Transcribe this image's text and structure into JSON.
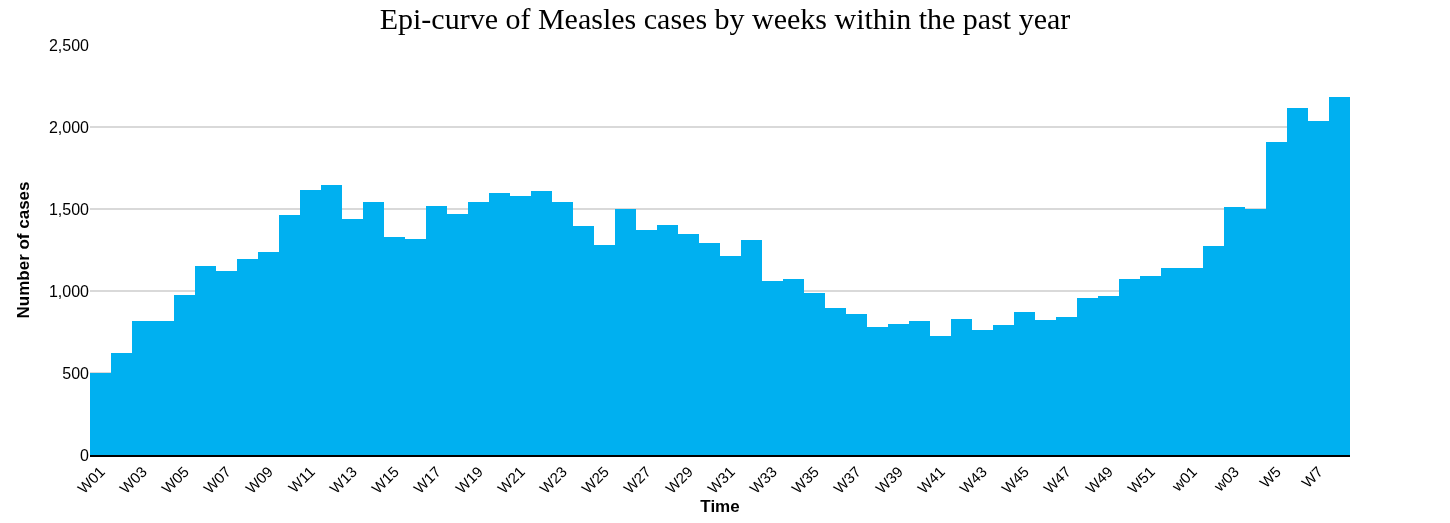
{
  "chart_data": {
    "type": "bar",
    "title": "Epi-curve of Measles cases by weeks within the past year",
    "xlabel": "Time",
    "ylabel": "Number of cases",
    "categories": [
      "W01",
      null,
      "W03",
      null,
      "W05",
      null,
      "W07",
      null,
      "W09",
      null,
      "W11",
      null,
      "W13",
      null,
      "W15",
      null,
      "W17",
      null,
      "W19",
      null,
      "W21",
      null,
      "W23",
      null,
      "W25",
      null,
      "W27",
      null,
      "W29",
      null,
      "W31",
      null,
      "W33",
      null,
      "W35",
      null,
      "W37",
      null,
      "W39",
      null,
      "W41",
      null,
      "W43",
      null,
      "W45",
      null,
      "W47",
      null,
      "W49",
      null,
      "W51",
      null,
      "w01",
      null,
      "w03",
      null,
      "W5",
      null,
      "W7",
      null
    ],
    "values": [
      500,
      625,
      820,
      820,
      975,
      1150,
      1120,
      1195,
      1240,
      1465,
      1615,
      1645,
      1440,
      1540,
      1330,
      1320,
      1520,
      1470,
      1540,
      1600,
      1580,
      1610,
      1540,
      1395,
      1280,
      1500,
      1375,
      1400,
      1350,
      1295,
      1215,
      1310,
      1060,
      1075,
      985,
      895,
      860,
      780,
      800,
      820,
      725,
      830,
      760,
      790,
      875,
      825,
      840,
      960,
      970,
      1075,
      1090,
      1140,
      1140,
      1275,
      1510,
      1500,
      1910,
      2115,
      2035,
      2185
    ],
    "color": "#00b0f0",
    "ylim": [
      0,
      2500
    ],
    "yticks": [
      0,
      500,
      {
        "value": 1000,
        "label": "1,000"
      },
      {
        "value": 1500,
        "label": "1,500"
      },
      {
        "value": 2000,
        "label": "2,000"
      },
      {
        "value": 2500,
        "label": "2,500"
      }
    ],
    "grid": "y"
  }
}
